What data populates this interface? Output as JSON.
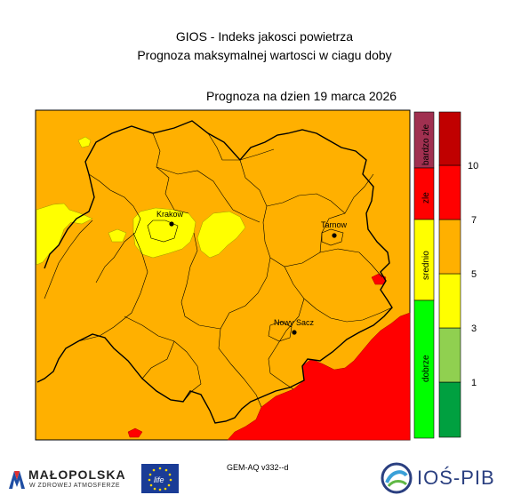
{
  "header": {
    "title_line1": "GIOS - Indeks jakosci powietrza",
    "title_line2": "Prognoza maksymalnej wartosci w ciagu doby",
    "forecast_date": "Prognoza na dzien  19 marca 2026"
  },
  "cities": [
    {
      "id": "krakow",
      "label": "Krakow"
    },
    {
      "id": "tarnow",
      "label": "Tarnow"
    },
    {
      "id": "nowy-sacz",
      "label": "Nowy Sacz"
    }
  ],
  "legend": {
    "categories": [
      {
        "label": "bardzo zle",
        "color": "#a03050"
      },
      {
        "label": "zle",
        "color": "#ff0000"
      },
      {
        "label": "srednio",
        "color": "#ffff00"
      },
      {
        "label": "dobrze",
        "color": "#00ff00"
      }
    ],
    "scale_colors": [
      "#00a040",
      "#90d050",
      "#ffff00",
      "#ffb000",
      "#ff0000",
      "#c00000"
    ],
    "ticks": [
      "1",
      "3",
      "5",
      "7",
      "10"
    ]
  },
  "map_colors": {
    "orange": "#ffb000",
    "yellow": "#ffff00",
    "red": "#ff0000",
    "boundary": "#000000"
  },
  "footer": {
    "model_label": "GEM-AQ v332--d",
    "malopolska_name": "MAŁOPOLSKA",
    "malopolska_tagline": "W ZDROWEJ ATMOSFERZE",
    "ios_name": "IOŚ-PIB",
    "eu_flag_text": "life"
  }
}
